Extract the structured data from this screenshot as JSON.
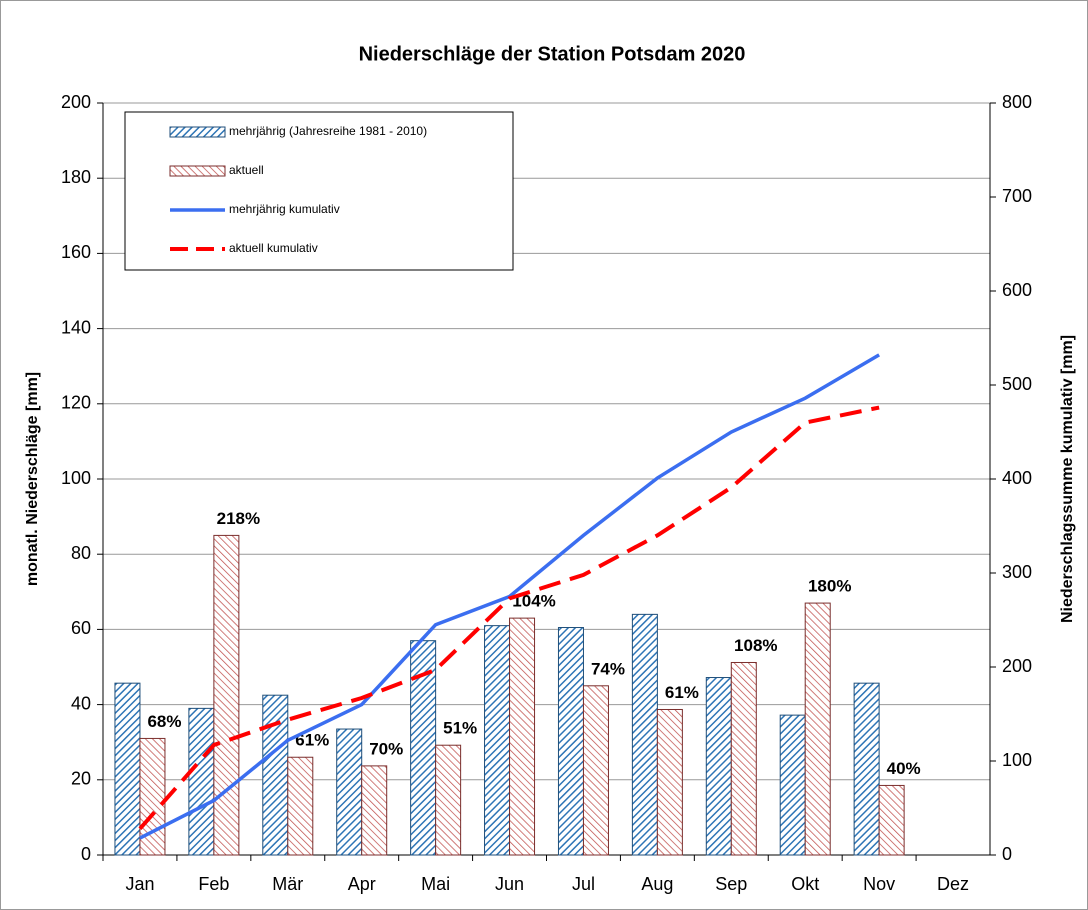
{
  "chart_data": {
    "type": "bar-line",
    "title": "Niederschläge der Station Potsdam 2020",
    "y_label": "monatl. Niederschläge [mm]",
    "y2_label": "Niederschlagssumme kumulativ [mm]",
    "categories": [
      "Jan",
      "Feb",
      "Mär",
      "Apr",
      "Mai",
      "Jun",
      "Jul",
      "Aug",
      "Sep",
      "Okt",
      "Nov",
      "Dez"
    ],
    "series": [
      {
        "name": "mehrjährig (Jahresreihe 1981 - 2010)",
        "kind": "bar",
        "color": "#2e75b6",
        "values": [
          45.7,
          39,
          42.5,
          33.5,
          57,
          61,
          60.5,
          64,
          47.2,
          37.2,
          45.7,
          null
        ]
      },
      {
        "name": "aktuell",
        "kind": "bar",
        "color": "#c0504d",
        "values": [
          31,
          85,
          26,
          23.7,
          29.2,
          63,
          45,
          38.7,
          51.2,
          67,
          18.5,
          null
        ],
        "ratio_labels": [
          "68%",
          "218%",
          "61%",
          "70%",
          "51%",
          "104%",
          "74%",
          "61%",
          "108%",
          "180%",
          "40%",
          null
        ]
      },
      {
        "name": "mehrjährig kumulativ",
        "kind": "line",
        "axis": "y2",
        "color": "#3b6ef0",
        "values": [
          18,
          58,
          122,
          160,
          245,
          275,
          340,
          401,
          450,
          486,
          532,
          null
        ]
      },
      {
        "name": "aktuell kumulativ",
        "kind": "line",
        "axis": "y2",
        "dashed": true,
        "color": "#ff0000",
        "values": [
          28,
          117,
          144,
          167,
          197,
          273,
          298,
          340,
          391,
          460,
          476,
          null
        ]
      }
    ],
    "ylim": [
      0,
      200
    ],
    "yticks": [
      0,
      20,
      40,
      60,
      80,
      100,
      120,
      140,
      160,
      180,
      200
    ],
    "y2lim": [
      0,
      800
    ],
    "y2ticks": [
      0,
      100,
      200,
      300,
      400,
      500,
      600,
      700,
      800
    ],
    "grid": true,
    "legend": "top-left"
  }
}
